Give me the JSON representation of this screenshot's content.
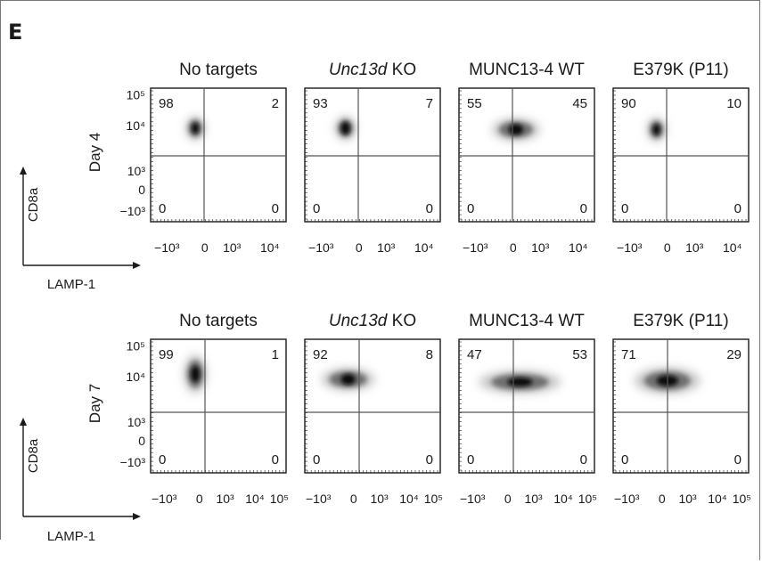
{
  "panel_letter": "E",
  "chart_data": {
    "type": "scatter",
    "subtype": "flow-cytometry-density-grid",
    "xlabel": "LAMP-1",
    "ylabel": "CD8a",
    "x_scale": "biexponential",
    "y_scale": "biexponential",
    "conditions": [
      {
        "title": "No targets",
        "italic": ""
      },
      {
        "title": " KO",
        "italic": "Unc13d"
      },
      {
        "title": "MUNC13-4 WT",
        "italic": ""
      },
      {
        "title": "E379K (P11)",
        "italic": ""
      }
    ],
    "y_tick_labels": [
      "10⁵",
      "10⁴",
      "10³",
      "0",
      "−10³"
    ],
    "rows": [
      {
        "label": "Day 4",
        "x_tick_labels": [
          "−10³",
          "0",
          "10³",
          "10⁴"
        ],
        "quadrant_percentages": [
          {
            "upper_left": "98",
            "upper_right": "2",
            "lower_left": "0",
            "lower_right": "0"
          },
          {
            "upper_left": "93",
            "upper_right": "7",
            "lower_left": "0",
            "lower_right": "0"
          },
          {
            "upper_left": "55",
            "upper_right": "45",
            "lower_left": "0",
            "lower_right": "0"
          },
          {
            "upper_left": "90",
            "upper_right": "10",
            "lower_left": "0",
            "lower_right": "0"
          }
        ]
      },
      {
        "label": "Day 7",
        "x_tick_labels": [
          "−10³",
          "0",
          "10³",
          "10⁴",
          "10⁵"
        ],
        "quadrant_percentages": [
          {
            "upper_left": "99",
            "upper_right": "1",
            "lower_left": "0",
            "lower_right": "0"
          },
          {
            "upper_left": "92",
            "upper_right": "8",
            "lower_left": "0",
            "lower_right": "0"
          },
          {
            "upper_left": "47",
            "upper_right": "53",
            "lower_left": "0",
            "lower_right": "0"
          },
          {
            "upper_left": "71",
            "upper_right": "29",
            "lower_left": "0",
            "lower_right": "0"
          }
        ]
      }
    ]
  }
}
